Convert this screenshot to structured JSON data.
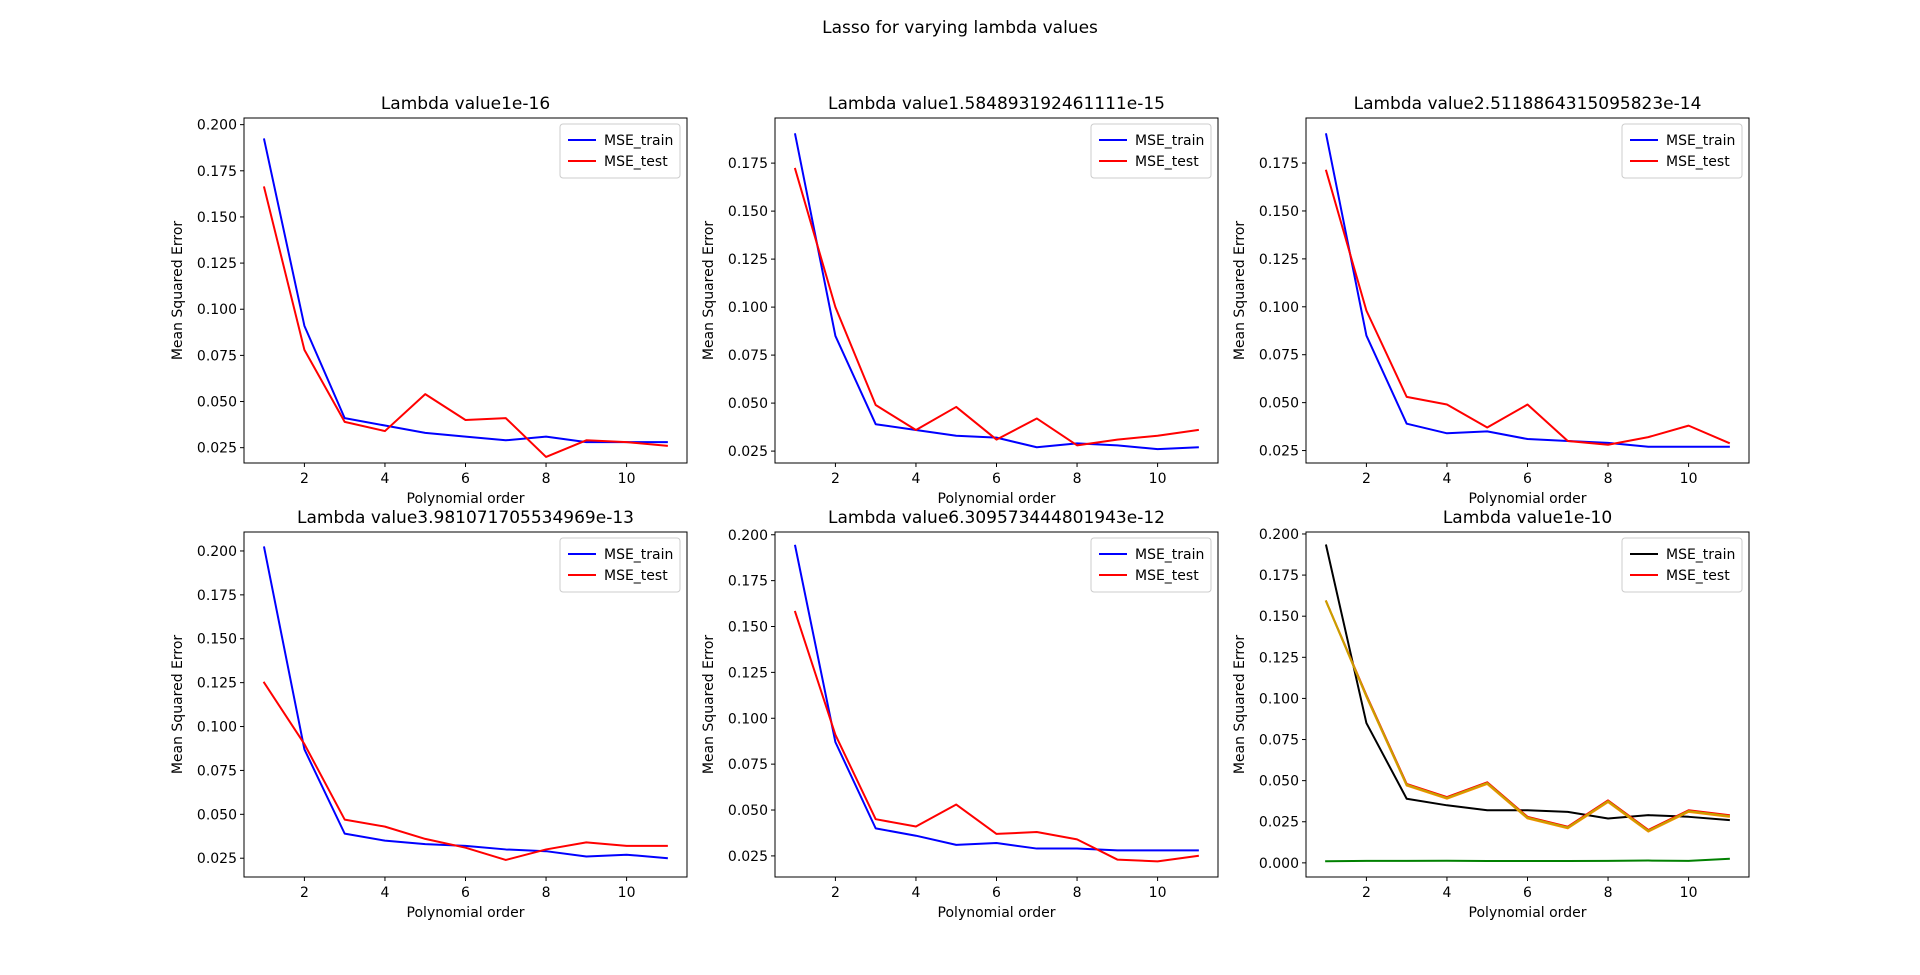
{
  "figure": {
    "suptitle": "Lasso for varying lambda values"
  },
  "chart_data": [
    {
      "type": "line",
      "title": "Lambda value1e-16",
      "xlabel": "Polynomial order",
      "ylabel": "Mean Squared Error",
      "x": [
        1,
        2,
        3,
        4,
        5,
        6,
        7,
        8,
        9,
        10,
        11
      ],
      "xlim": [
        0.5,
        11.5
      ],
      "ylim": [
        0.0167,
        0.2036
      ],
      "xticks": [
        2,
        4,
        6,
        8,
        10
      ],
      "yticks": [
        0.025,
        0.05,
        0.075,
        0.1,
        0.125,
        0.15,
        0.175,
        0.2
      ],
      "legend": "top-right",
      "grid": false,
      "series": [
        {
          "name": "MSE_train",
          "color": "#0000ff",
          "values": [
            0.192,
            0.091,
            0.041,
            0.037,
            0.033,
            0.031,
            0.029,
            0.031,
            0.028,
            0.028,
            0.028
          ]
        },
        {
          "name": "MSE_test",
          "color": "#ff0000",
          "values": [
            0.166,
            0.078,
            0.039,
            0.034,
            0.054,
            0.04,
            0.041,
            0.02,
            0.029,
            0.028,
            0.026
          ]
        }
      ]
    },
    {
      "type": "line",
      "title": "Lambda value1.584893192461111e-15",
      "xlabel": "Polynomial order",
      "ylabel": "Mean Squared Error",
      "x": [
        1,
        2,
        3,
        4,
        5,
        6,
        7,
        8,
        9,
        10,
        11
      ],
      "xlim": [
        0.5,
        11.5
      ],
      "ylim": [
        0.0188,
        0.1985
      ],
      "xticks": [
        2,
        4,
        6,
        8,
        10
      ],
      "yticks": [
        0.025,
        0.05,
        0.075,
        0.1,
        0.125,
        0.15,
        0.175
      ],
      "legend": "top-right",
      "grid": false,
      "series": [
        {
          "name": "MSE_train",
          "color": "#0000ff",
          "values": [
            0.19,
            0.085,
            0.039,
            0.036,
            0.033,
            0.032,
            0.027,
            0.029,
            0.028,
            0.026,
            0.027
          ]
        },
        {
          "name": "MSE_test",
          "color": "#ff0000",
          "values": [
            0.172,
            0.1,
            0.049,
            0.036,
            0.048,
            0.031,
            0.042,
            0.028,
            0.031,
            0.033,
            0.036
          ]
        }
      ]
    },
    {
      "type": "line",
      "title": "Lambda value2.5118864315095823e-14",
      "xlabel": "Polynomial order",
      "ylabel": "Mean Squared Error",
      "x": [
        1,
        2,
        3,
        4,
        5,
        6,
        7,
        8,
        9,
        10,
        11
      ],
      "xlim": [
        0.5,
        11.5
      ],
      "ylim": [
        0.0185,
        0.1985
      ],
      "xticks": [
        2,
        4,
        6,
        8,
        10
      ],
      "yticks": [
        0.025,
        0.05,
        0.075,
        0.1,
        0.125,
        0.15,
        0.175
      ],
      "legend": "top-right",
      "grid": false,
      "series": [
        {
          "name": "MSE_train",
          "color": "#0000ff",
          "values": [
            0.19,
            0.085,
            0.039,
            0.034,
            0.035,
            0.031,
            0.03,
            0.029,
            0.027,
            0.027,
            0.027
          ]
        },
        {
          "name": "MSE_test",
          "color": "#ff0000",
          "values": [
            0.171,
            0.098,
            0.053,
            0.049,
            0.037,
            0.049,
            0.03,
            0.028,
            0.032,
            0.038,
            0.029
          ]
        }
      ]
    },
    {
      "type": "line",
      "title": "Lambda value3.981071705534969e-13",
      "xlabel": "Polynomial order",
      "ylabel": "Mean Squared Error",
      "x": [
        1,
        2,
        3,
        4,
        5,
        6,
        7,
        8,
        9,
        10,
        11
      ],
      "xlim": [
        0.5,
        11.5
      ],
      "ylim": [
        0.0143,
        0.2108
      ],
      "xticks": [
        2,
        4,
        6,
        8,
        10
      ],
      "yticks": [
        0.025,
        0.05,
        0.075,
        0.1,
        0.125,
        0.15,
        0.175,
        0.2
      ],
      "legend": "top-right",
      "grid": false,
      "series": [
        {
          "name": "MSE_train",
          "color": "#0000ff",
          "values": [
            0.202,
            0.087,
            0.039,
            0.035,
            0.033,
            0.032,
            0.03,
            0.029,
            0.026,
            0.027,
            0.025
          ]
        },
        {
          "name": "MSE_test",
          "color": "#ff0000",
          "values": [
            0.125,
            0.09,
            0.047,
            0.043,
            0.036,
            0.031,
            0.024,
            0.03,
            0.034,
            0.032,
            0.032
          ]
        }
      ]
    },
    {
      "type": "line",
      "title": "Lambda value6.309573444801943e-12",
      "xlabel": "Polynomial order",
      "ylabel": "Mean Squared Error",
      "x": [
        1,
        2,
        3,
        4,
        5,
        6,
        7,
        8,
        9,
        10,
        11
      ],
      "xlim": [
        0.5,
        11.5
      ],
      "ylim": [
        0.0135,
        0.2015
      ],
      "xticks": [
        2,
        4,
        6,
        8,
        10
      ],
      "yticks": [
        0.025,
        0.05,
        0.075,
        0.1,
        0.125,
        0.15,
        0.175,
        0.2
      ],
      "legend": "top-right",
      "grid": false,
      "series": [
        {
          "name": "MSE_train",
          "color": "#0000ff",
          "values": [
            0.194,
            0.087,
            0.04,
            0.036,
            0.031,
            0.032,
            0.029,
            0.029,
            0.028,
            0.028,
            0.028
          ]
        },
        {
          "name": "MSE_test",
          "color": "#ff0000",
          "values": [
            0.158,
            0.091,
            0.045,
            0.041,
            0.053,
            0.037,
            0.038,
            0.034,
            0.023,
            0.022,
            0.025
          ]
        }
      ]
    },
    {
      "type": "line",
      "title": "Lambda value1e-10",
      "xlabel": "Polynomial order",
      "ylabel": "Mean Squared Error",
      "x": [
        1,
        2,
        3,
        4,
        5,
        6,
        7,
        8,
        9,
        10,
        11
      ],
      "xlim": [
        0.5,
        11.5
      ],
      "ylim": [
        -0.0086,
        0.2012
      ],
      "xticks": [
        2,
        4,
        6,
        8,
        10
      ],
      "yticks": [
        0.0,
        0.025,
        0.05,
        0.075,
        0.1,
        0.125,
        0.15,
        0.175,
        0.2
      ],
      "legend": "top-right",
      "grid": false,
      "series": [
        {
          "name": "MSE_train",
          "color": "#000000",
          "values": [
            0.193,
            0.085,
            0.039,
            0.035,
            0.032,
            0.032,
            0.031,
            0.027,
            0.029,
            0.028,
            0.026
          ]
        },
        {
          "name": "MSE_test",
          "color": "#ff0000",
          "values": [
            0.159,
            0.102,
            0.048,
            0.04,
            0.049,
            0.028,
            0.022,
            0.038,
            0.02,
            0.032,
            0.029
          ]
        },
        {
          "color": "#ff8c00",
          "values": [
            0.159,
            0.101,
            0.047,
            0.039,
            0.048,
            0.027,
            0.021,
            0.037,
            0.019,
            0.031,
            0.028
          ]
        },
        {
          "color": "#008000",
          "values": [
            0.001,
            0.0012,
            0.0012,
            0.0013,
            0.0011,
            0.0011,
            0.0011,
            0.0012,
            0.0014,
            0.0012,
            0.0025
          ]
        },
        {
          "color": "#c8a000",
          "values": [
            0.159,
            0.1015,
            0.0475,
            0.0395,
            0.0485,
            0.0275,
            0.0215,
            0.0375,
            0.0195,
            0.0315,
            0.0285
          ]
        }
      ]
    }
  ]
}
